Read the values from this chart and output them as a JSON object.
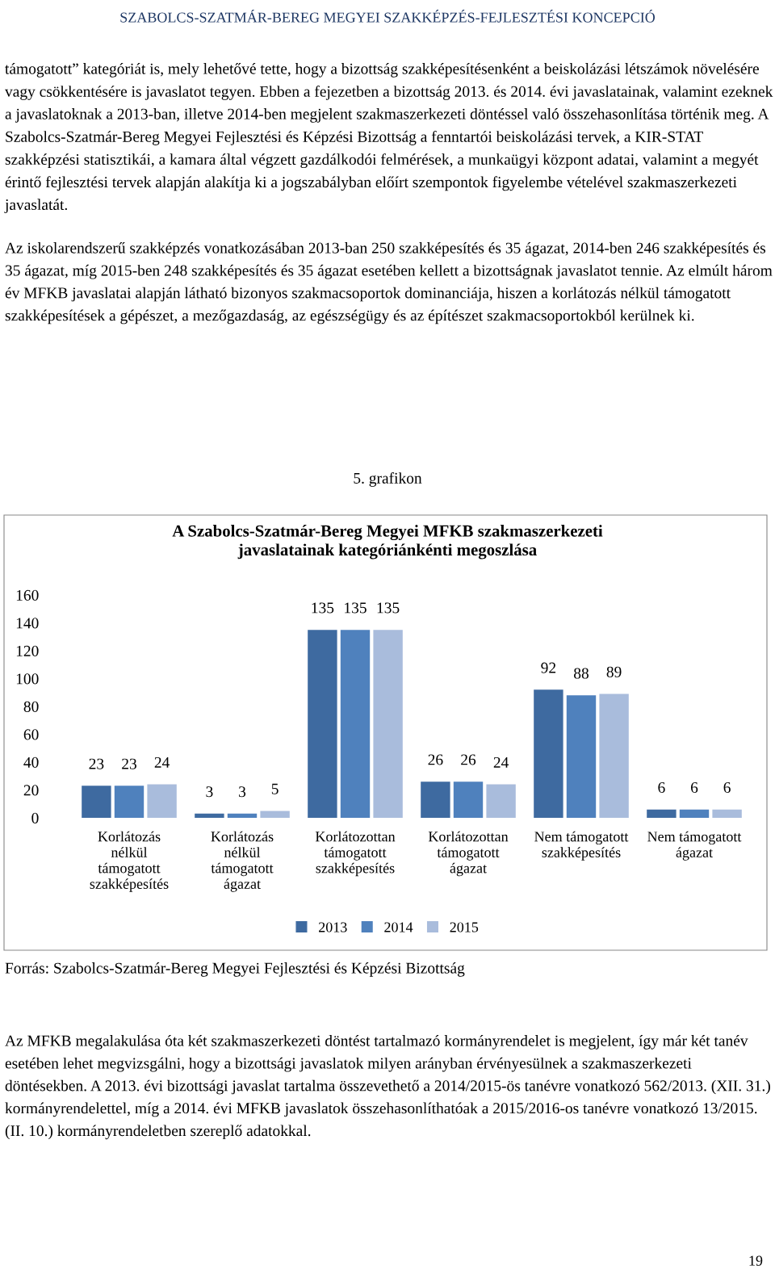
{
  "chart_data": {
    "type": "bar",
    "title": "A Szabolcs-Szatmár-Bereg Megyei MFKB szakmaszerkezeti\njavaslatainak kategóriánkénti megoszlása",
    "categories": [
      "Korlátozás\nnélkül\ntámogatott\nszakképesítés",
      "Korlátozás\nnélkül\ntámogatott\nágazat",
      "Korlátozottan\ntámogatott\nszakképesítés",
      "Korlátozottan\ntámogatott\nágazat",
      "Nem támogatott\nszakképesítés",
      "Nem támogatott\nágazat"
    ],
    "series": [
      {
        "name": "2013",
        "color": "#3e6aa0",
        "values": [
          23,
          3,
          135,
          26,
          92,
          6
        ]
      },
      {
        "name": "2014",
        "color": "#4f81bd",
        "values": [
          23,
          3,
          135,
          26,
          88,
          6
        ]
      },
      {
        "name": "2015",
        "color": "#a9bcdc",
        "values": [
          24,
          5,
          135,
          24,
          89,
          6
        ]
      }
    ],
    "ylim": [
      0,
      160
    ],
    "yticks": [
      0,
      20,
      40,
      60,
      80,
      100,
      120,
      140,
      160
    ],
    "data_labels": true,
    "legend": "bottom",
    "grid": false,
    "annotations": [
      "SZABOLCS-SZATMÁR-BEREG MEGYEI SZAKKÉPZÉS-FEJLESZTÉSI KONCEPCIÓ",
      "támogatott” kategóriát is, mely lehetővé tette, hogy a bizottság szakképesítésenként a beiskolázási létszámok növelésére vagy csökkentésére is javaslatot tegyen. Ebben a fejezetben a bizottság 2013. és 2014. évi javaslatainak, valamint ezeknek a javaslatoknak a 2013-ban, illetve 2014-ben megjelent szakmaszerkezeti döntéssel való összehasonlítása történik meg. A Szabolcs-Szatmár-Bereg Megyei Fejlesztési és Képzési Bizottság a fenntartói beiskolázási tervek, a KIR-STAT szakképzési statisztikái, a kamara által végzett gazdálkodói felmérések, a munkaügyi központ adatai, valamint a megyét érintő fejlesztési tervek alapján alakítja ki a jogszabályban előírt szempontok figyelembe vételével szakmaszerkezeti javaslatát.",
      "Az iskolarendszerű szakképzés vonatkozásában 2013-ban 250 szakképesítés és 35 ágazat, 2014-ben 246 szakképesítés és 35 ágazat, míg 2015-ben 248 szakképesítés és 35 ágazat esetében kellett a bizottságnak javaslatot tennie. Az elmúlt három év MFKB javaslatai alapján látható bizonyos szakmacsoportok dominanciája, hiszen a korlátozás nélkül támogatott szakképesítések a gépészet, a mezőgazdaság, az egészségügy és az építészet szakmacsoportokból kerülnek ki.",
      "5. grafikon",
      "Forrás: Szabolcs-Szatmár-Bereg Megyei Fejlesztési és Képzési Bizottság",
      "Az MFKB megalakulása óta két szakmaszerkezeti döntést tartalmazó kormányrendelet is megjelent, így már két tanév esetében lehet megvizsgálni, hogy a bizottsági javaslatok milyen arányban érvényesülnek a szakmaszerkezeti döntésekben. A 2013. évi bizottsági javaslat tartalma összevethető a 2014/2015-ös tanévre vonatkozó 562/2013. (XII. 31.) kormányrendelettel, míg a 2014. évi MFKB javaslatok összehasonlíthatóak a 2015/2016-os tanévre vonatkozó 13/2015. (II. 10.) kormányrendeletben szereplő adatokkal.",
      "19"
    ]
  }
}
